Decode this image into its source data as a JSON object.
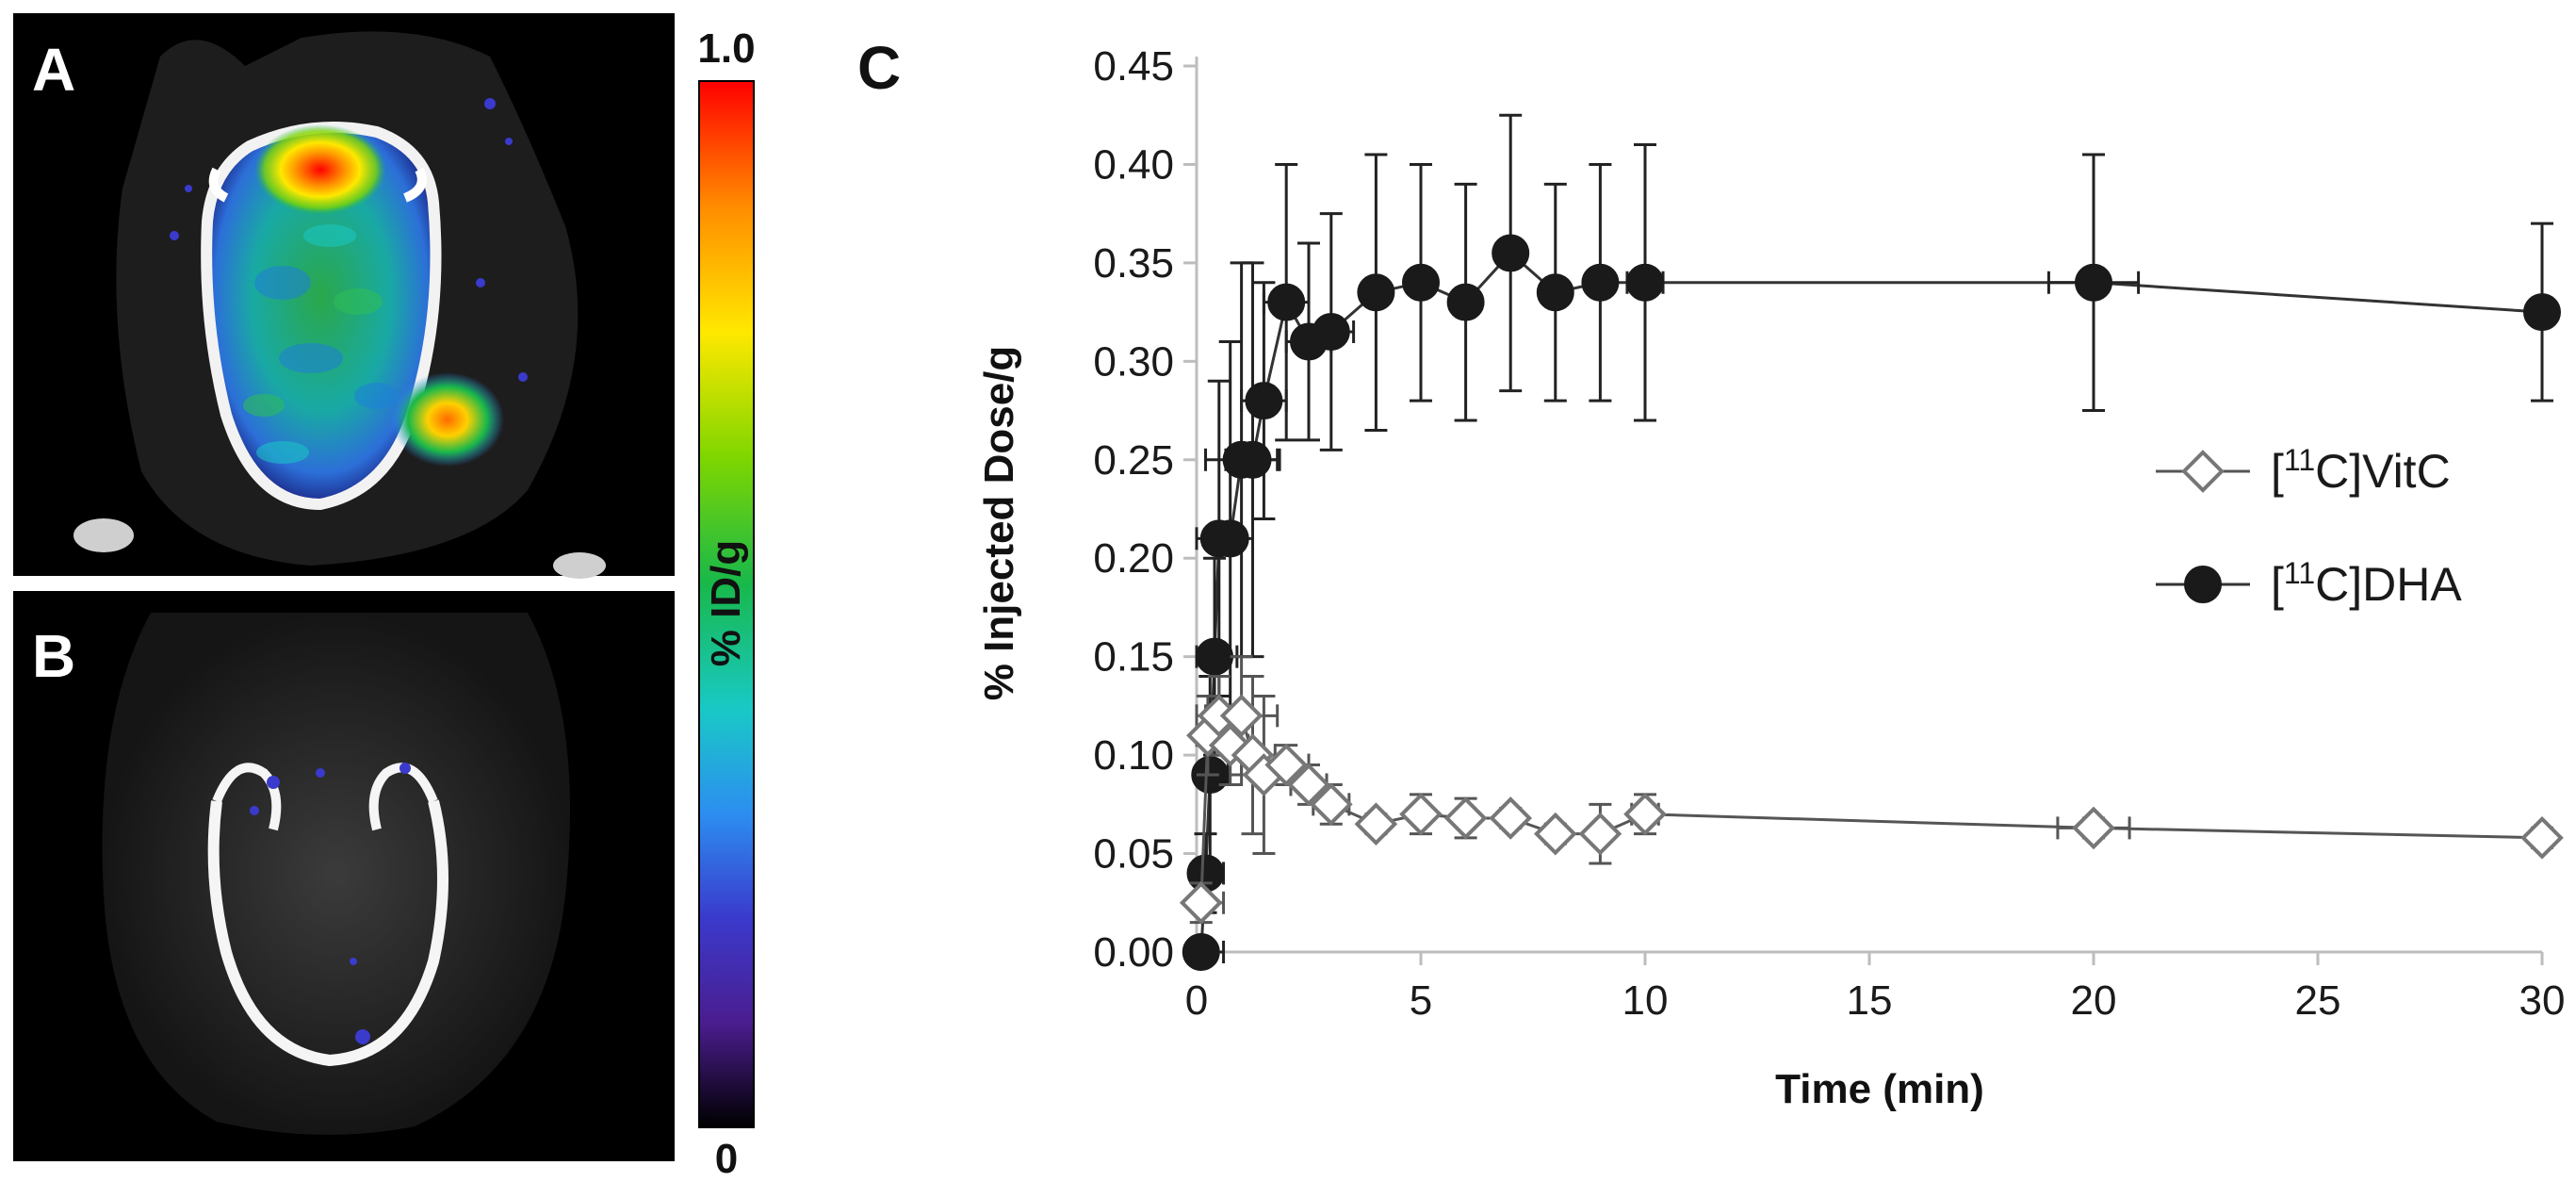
{
  "panels": {
    "a_label": "A",
    "b_label": "B",
    "c_label": "C"
  },
  "colorbar": {
    "max_label": "1.0",
    "min_label": "0",
    "title": "% ID/g",
    "stops": [
      "#ff0000",
      "#ff8c00",
      "#ffe800",
      "#7fd600",
      "#18b84a",
      "#19c9c6",
      "#2c8ef0",
      "#3a3acc",
      "#4b1d8f",
      "#000000"
    ]
  },
  "chart_data": {
    "type": "scatter",
    "xlabel": "Time (min)",
    "ylabel": "% Injected Dose/g",
    "xlim": [
      0,
      30
    ],
    "ylim": [
      0,
      0.45
    ],
    "x_ticks": [
      "0",
      "5",
      "10",
      "15",
      "20",
      "25",
      "30"
    ],
    "y_ticks": [
      "0.00",
      "0.05",
      "0.10",
      "0.15",
      "0.20",
      "0.25",
      "0.30",
      "0.35",
      "0.40",
      "0.45"
    ],
    "legend_position": "right-middle",
    "series": [
      {
        "name": "[11C]VitC",
        "legend_prefix": "[",
        "legend_sup": "11",
        "legend_suffix": "C]VitC",
        "marker": "open-diamond",
        "color": "#777777",
        "x": [
          0.1,
          0.25,
          0.5,
          0.75,
          1,
          1.25,
          1.5,
          2,
          2.5,
          3,
          4,
          5,
          6,
          7,
          8,
          9,
          10,
          20,
          30
        ],
        "y": [
          0.025,
          0.11,
          0.12,
          0.105,
          0.12,
          0.1,
          0.09,
          0.095,
          0.085,
          0.075,
          0.065,
          0.07,
          0.068,
          0.068,
          0.06,
          0.06,
          0.07,
          0.063,
          0.058
        ],
        "y_err": [
          0.01,
          0.02,
          0.02,
          0.02,
          0.03,
          0.04,
          0.04,
          0.01,
          0.01,
          0.01,
          0.005,
          0.01,
          0.01,
          0.005,
          0.005,
          0.015,
          0.01,
          0.005,
          0.005
        ],
        "x_err": [
          0.5,
          0.4,
          0.5,
          0.4,
          0.8,
          0.5,
          0.5,
          0.5,
          0.4,
          0.4,
          0.2,
          0.2,
          0.2,
          0.2,
          0.2,
          0.2,
          0.3,
          0.8,
          0.2
        ]
      },
      {
        "name": "[11C]DHA",
        "legend_prefix": "[",
        "legend_sup": "11",
        "legend_suffix": "C]DHA",
        "marker": "filled-circle",
        "color": "#1a1a1a",
        "x": [
          0.1,
          0.2,
          0.3,
          0.4,
          0.5,
          0.75,
          1,
          1.25,
          1.5,
          2,
          2.5,
          3,
          4,
          5,
          6,
          7,
          8,
          9,
          10,
          20,
          30
        ],
        "y": [
          0.0,
          0.04,
          0.09,
          0.15,
          0.21,
          0.21,
          0.25,
          0.25,
          0.28,
          0.33,
          0.31,
          0.315,
          0.335,
          0.34,
          0.33,
          0.355,
          0.335,
          0.34,
          0.34,
          0.34,
          0.325
        ],
        "y_err": [
          0.0,
          0.02,
          0.05,
          0.05,
          0.08,
          0.1,
          0.1,
          0.1,
          0.06,
          0.07,
          0.05,
          0.06,
          0.07,
          0.06,
          0.06,
          0.07,
          0.055,
          0.06,
          0.07,
          0.065,
          0.045
        ],
        "x_err": [
          0.5,
          0.4,
          0.4,
          0.5,
          0.5,
          0.5,
          0.8,
          0.6,
          0.5,
          0.5,
          0.5,
          0.5,
          0.2,
          0.2,
          0.2,
          0.2,
          0.2,
          0.2,
          0.4,
          1.0,
          0.3
        ]
      }
    ]
  }
}
